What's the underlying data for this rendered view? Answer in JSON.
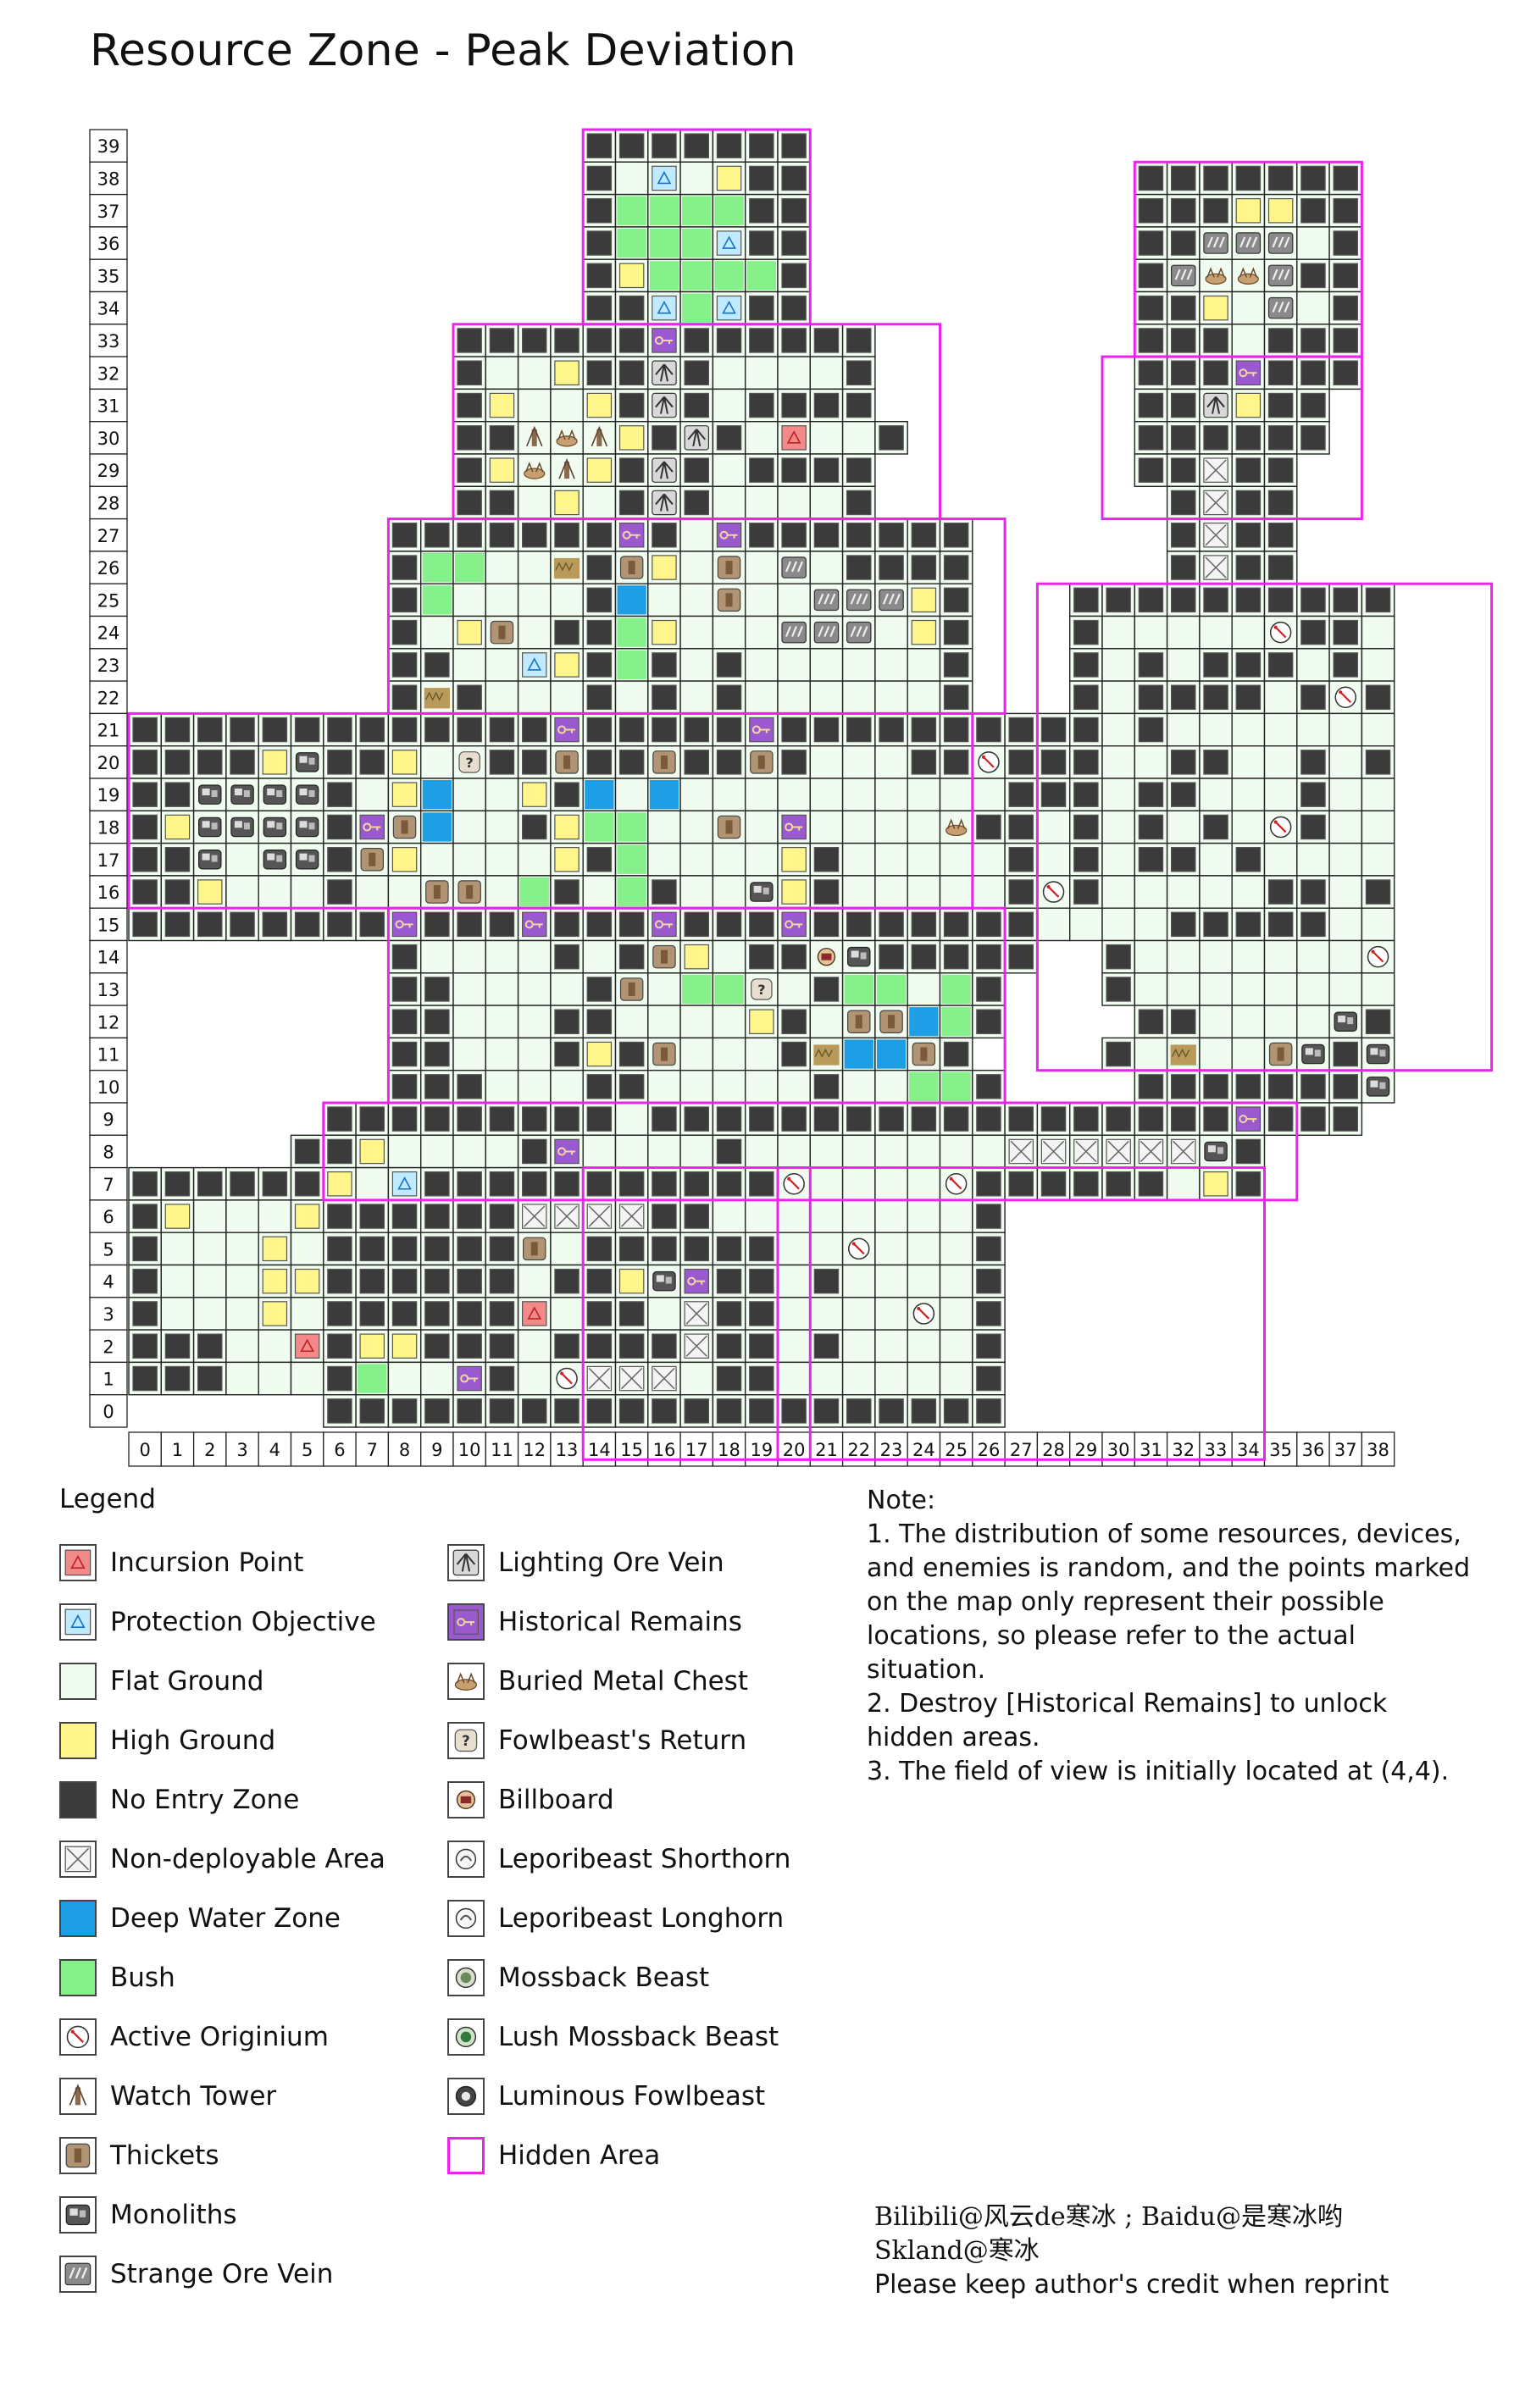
{
  "title": "Resource Zone - Peak Deviation",
  "grid": {
    "cols": 39,
    "rows": 40,
    "x_labels": [
      "0",
      "1",
      "2",
      "3",
      "4",
      "5",
      "6",
      "7",
      "8",
      "9",
      "10",
      "11",
      "12",
      "13",
      "14",
      "15",
      "16",
      "17",
      "18",
      "19",
      "20",
      "21",
      "22",
      "23",
      "24",
      "25",
      "26",
      "27",
      "28",
      "29",
      "30",
      "31",
      "32",
      "33",
      "34",
      "35",
      "36",
      "37",
      "38"
    ],
    "y_labels": [
      "39",
      "38",
      "37",
      "36",
      "35",
      "34",
      "33",
      "32",
      "31",
      "30",
      "29",
      "28",
      "27",
      "26",
      "25",
      "24",
      "23",
      "22",
      "21",
      "20",
      "19",
      "18",
      "17",
      "16",
      "15",
      "14",
      "13",
      "12",
      "11",
      "10",
      "9",
      "8",
      "7",
      "6",
      "5",
      "4",
      "3",
      "2",
      "1",
      "0"
    ]
  },
  "colors": {
    "flat": "#f1fcf0",
    "high": "#fff58a",
    "noentry": "#3b3b3b",
    "deepwater": "#1e9fe5",
    "bush": "#86f08a",
    "hidden_border": "#ee22ee",
    "historical": "#9b59d0",
    "incursion": "#f28a8a",
    "protection": "#bfeaff"
  },
  "legend": {
    "title": "Legend",
    "items_left": [
      {
        "label": "Incursion Point",
        "icon": "incursion-point-icon"
      },
      {
        "label": "Protection Objective",
        "icon": "protection-objective-icon"
      },
      {
        "label": "Flat Ground",
        "icon": "flat-ground-icon"
      },
      {
        "label": "High Ground",
        "icon": "high-ground-icon"
      },
      {
        "label": "No Entry Zone",
        "icon": "no-entry-zone-icon"
      },
      {
        "label": "Non-deployable Area",
        "icon": "non-deployable-icon"
      },
      {
        "label": "Deep Water Zone",
        "icon": "deep-water-icon"
      },
      {
        "label": "Bush",
        "icon": "bush-icon"
      },
      {
        "label": "Active Originium",
        "icon": "active-originium-icon"
      },
      {
        "label": "Watch Tower",
        "icon": "watch-tower-icon"
      },
      {
        "label": "Thickets",
        "icon": "thickets-icon"
      },
      {
        "label": "Monoliths",
        "icon": "monoliths-icon"
      },
      {
        "label": "Strange Ore Vein",
        "icon": "strange-ore-vein-icon"
      }
    ],
    "items_right": [
      {
        "label": "Lighting Ore Vein",
        "icon": "lighting-ore-vein-icon"
      },
      {
        "label": "Historical Remains",
        "icon": "historical-remains-icon"
      },
      {
        "label": "Buried Metal Chest",
        "icon": "buried-metal-chest-icon"
      },
      {
        "label": "Fowlbeast's Return",
        "icon": "fowlbeast-return-icon"
      },
      {
        "label": "Billboard",
        "icon": "billboard-icon"
      },
      {
        "label": "Leporibeast Shorthorn",
        "icon": "leporibeast-shorthorn-icon"
      },
      {
        "label": "Leporibeast Longhorn",
        "icon": "leporibeast-longhorn-icon"
      },
      {
        "label": "Mossback Beast",
        "icon": "mossback-beast-icon"
      },
      {
        "label": "Lush Mossback Beast",
        "icon": "lush-mossback-beast-icon"
      },
      {
        "label": "Luminous Fowlbeast",
        "icon": "luminous-fowlbeast-icon"
      },
      {
        "label": "Hidden Area",
        "icon": "hidden-area-icon"
      }
    ]
  },
  "note": {
    "title": "Note:",
    "lines": [
      "1. The distribution of some resources, devices, and enemies is random, and the points marked on the map only represent their possible locations, so please refer to the actual situation.",
      "2. Destroy [Historical Remains] to unlock hidden areas.",
      "3. The field of view is initially located at (4,4)."
    ]
  },
  "credits": {
    "line1": "Bilibili@风云de寒冰 ; Baidu@是寒冰哟",
    "line2": "Skland@寒冰",
    "line3": "Please keep author's credit when reprint"
  },
  "map_rows": [
    "..............ZZZZZZZ.................",
    "..............ZFPFHZZ..........ZZZZZZZ",
    "..............ZBBBBZZ..........ZZZHHZZ",
    "..............ZBBBPZZ..........ZZVVVFZ",
    "..............ZHBBBBZ..........ZVCCVZZ",
    "..............ZZPBPZZ..........ZZHFVFZ",
    "..........ZZZZZZRZZZZZZ........ZZZFZZZ",
    "..........ZFFHZZLZFFFFZ........ZZZRZZZ",
    "..........ZHFFHZLZFZZZZ........ZZLHZZ.",
    "..........ZZOCOHZLZFIFFZ.......ZZZZZZ.",
    "..........ZHCOHZLZFZZZZ........ZZXZZ..",
    "..........ZZFHFZLZFFFFZ.........ZXZZ..",
    "........ZZZZZZZRZFRZZZZZZZ......ZXZZ..",
    "........ZBBFFGZTHFTFVFZZZZ......ZXZZ..",
    "........ZBFFFFZWFFTFFVVVHZ...ZZZZZZZZZZZZ",
    "........ZFHTFZZBHFFFVVVFHZ...ZFFFFFAZZFFFZ",
    "........ZZFFPHZBZFZFFFFFFZ...ZFZFZZZFZFZFZ",
    "........ZGZFFFZFZFZFFFFFFZ...ZFZZZZFZAZFZ",
    "ZZZZZZZZZZZZZRZZZZZRZZZZZZZZZZFZFFFFFFFFFZ",
    "ZZZZHMZZHFNZZTZZTZZTZFFFZZAZZZFFZZFFZFZFZ",
    "ZZMMMMZFHWFFHZWFWFFFFFFFFFFZZZFZZFFFZFFFZ",
    "ZHMMMMZRTWFFZHBBFFTFRFFFFCZZFZFZFZFAZFFFZ",
    "ZZMFMMZTHFFFFHZBFFFFHZFFFFFZFZFZZFZFFFFZ",
    "ZZHFFFZFFTTFBZFBZFFMHZFFFFFZAZFFFFFZZFZ",
    "ZZZZZZZZRZZZRZZZRZZZRZZZZZZZFFFFZZZZZFFZ",
    "........ZFFFFZFZTHFZZYMZZZZZ..ZFFFFFFFAZZZ",
    "........ZZFFFFZTFBBNFZBBFBZ...ZFFFFFFFFFFZ",
    "........ZZFFFZZFFFFHZFTTWBZ....ZZFFFFMZMZMZ",
    "........ZZFFFZHZTFFFZGWWTZ....ZFGFFTMZMZHZM",
    "........ZZZFFFZZFFFFFZFFBBZ....ZZZZZZZMMZVZ",
    "......ZZZZZZZZZFZZZZZZZZZZZZZZZZZZRZZZ....",
    ".....ZZHFFFFZRFFFFZFFFFFFFFXXXXXXMZ.......",
    "ZZZZZZHFPZZZZZZZZZZZAFFFFAZZZZZZFHZ.......",
    "ZHFFFHZZZZZZXXXXZZFFFFFFFFZ..............",
    "ZFFFHFZZZZZZTFZZZZZZFFAFFFZ..............",
    "ZFFFHHZZZZZZFZZHMRZZFZFFFFZ..............",
    "ZFFFHFZZZZZZIFZZFXZZFFFFAFZ..............",
    "ZZZFFIZHHZZZFZZZZXZZFZFFFFZ..............",
    "ZZZFFFZBFFRZFAXXXFZZFFFFFFZ..............",
    "......ZZZZZZZZZZZZZZZZZZZZZ.............."
  ],
  "hidden_areas_cells": [
    [
      14,
      0,
      7,
      6
    ],
    [
      10,
      6,
      15,
      6
    ],
    [
      8,
      12,
      19,
      6
    ],
    [
      0,
      18,
      26,
      6
    ],
    [
      8,
      24,
      19,
      6
    ],
    [
      31,
      1,
      7,
      6
    ],
    [
      30,
      7,
      8,
      5
    ],
    [
      28,
      14,
      14,
      15
    ],
    [
      6,
      30,
      30,
      3
    ],
    [
      14,
      32,
      7,
      9
    ],
    [
      20,
      32,
      15,
      9
    ]
  ]
}
